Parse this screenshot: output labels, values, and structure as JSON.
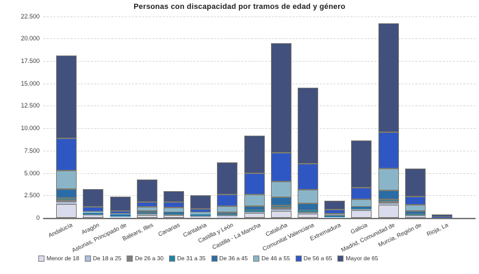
{
  "chart": {
    "title": "Personas con discapacidad por tramos de edad y género"
  },
  "chart_data": {
    "type": "bar",
    "stacked": true,
    "title": "Personas con discapacidad por tramos de edad y género",
    "xlabel": "",
    "ylabel": "",
    "ylim": [
      0,
      22500
    ],
    "grid": "horizontal-dashed",
    "legend_position": "bottom",
    "y_ticks": [
      {
        "label": "0",
        "value": 0
      },
      {
        "label": "2.500",
        "value": 2500
      },
      {
        "label": "5.000",
        "value": 5000
      },
      {
        "label": "7.500",
        "value": 7500
      },
      {
        "label": "10.000",
        "value": 10000
      },
      {
        "label": "12.500",
        "value": 12500
      },
      {
        "label": "15.000",
        "value": 15000
      },
      {
        "label": "17.500",
        "value": 17500
      },
      {
        "label": "20.000",
        "value": 20000
      },
      {
        "label": "22.500",
        "value": 22500
      }
    ],
    "categories": [
      "Andalucía",
      "Aragón",
      "Asturias, Principado de",
      "Balears, Illes",
      "Canarias",
      "Cantabria",
      "Castilla y León",
      "Castilla - La Mancha",
      "Cataluña",
      "Comunitat Valenciana",
      "Extremadura",
      "Galicia",
      "Madrid, Comunidad de",
      "Murcia, Región de",
      "Rioja, La"
    ],
    "series": [
      {
        "name": "Menor de 18",
        "color": "#dadced",
        "values": [
          1550,
          280,
          110,
          330,
          300,
          150,
          200,
          560,
          740,
          460,
          100,
          840,
          1430,
          230,
          15
        ]
      },
      {
        "name": "De 18 a 25",
        "color": "#b0bedb",
        "values": [
          200,
          60,
          40,
          50,
          45,
          40,
          30,
          50,
          176,
          76,
          27,
          76,
          200,
          30,
          5
        ]
      },
      {
        "name": "De 26 a 30",
        "color": "#7f7f7f",
        "values": [
          210,
          60,
          45,
          73,
          50,
          40,
          60,
          80,
          206,
          153,
          30,
          76,
          205,
          86,
          7
        ]
      },
      {
        "name": "De 31 a 35",
        "color": "#1f86a5",
        "values": [
          230,
          80,
          60,
          80,
          60,
          50,
          70,
          176,
          252,
          176,
          30,
          76,
          250,
          60,
          8
        ]
      },
      {
        "name": "De 36 a 45",
        "color": "#2a6ca6",
        "values": [
          990,
          80,
          90,
          252,
          153,
          100,
          252,
          435,
          893,
          763,
          40,
          176,
          945,
          336,
          10
        ]
      },
      {
        "name": "De 46 a 55",
        "color": "#8ab5c9",
        "values": [
          2060,
          100,
          120,
          412,
          504,
          206,
          687,
          1275,
          1779,
          1527,
          252,
          794,
          2465,
          687,
          25
        ]
      },
      {
        "name": "De 56 a 65",
        "color": "#2f57c4",
        "values": [
          3640,
          535,
          305,
          557,
          611,
          405,
          1275,
          2367,
          3230,
          2901,
          435,
          1298,
          4070,
          962,
          35
        ]
      },
      {
        "name": "Mayor de 65",
        "color": "#42507e",
        "values": [
          9220,
          2010,
          1626,
          2497,
          1275,
          1527,
          3634,
          4199,
          12216,
          8475,
          1016,
          5268,
          12095,
          3130,
          300
        ]
      }
    ],
    "totals": [
      18100,
      3205,
      2396,
      4251,
      2998,
      2518,
      6208,
      9142,
      19492,
      14531,
      1930,
      8604,
      21660,
      5521,
      405
    ],
    "colors": {
      "grid": "#d7d7d7",
      "axis": "#747474",
      "tick_text": "#3d3d3d",
      "segment_border": "#7b7b6f",
      "background": "#ffffff"
    }
  }
}
